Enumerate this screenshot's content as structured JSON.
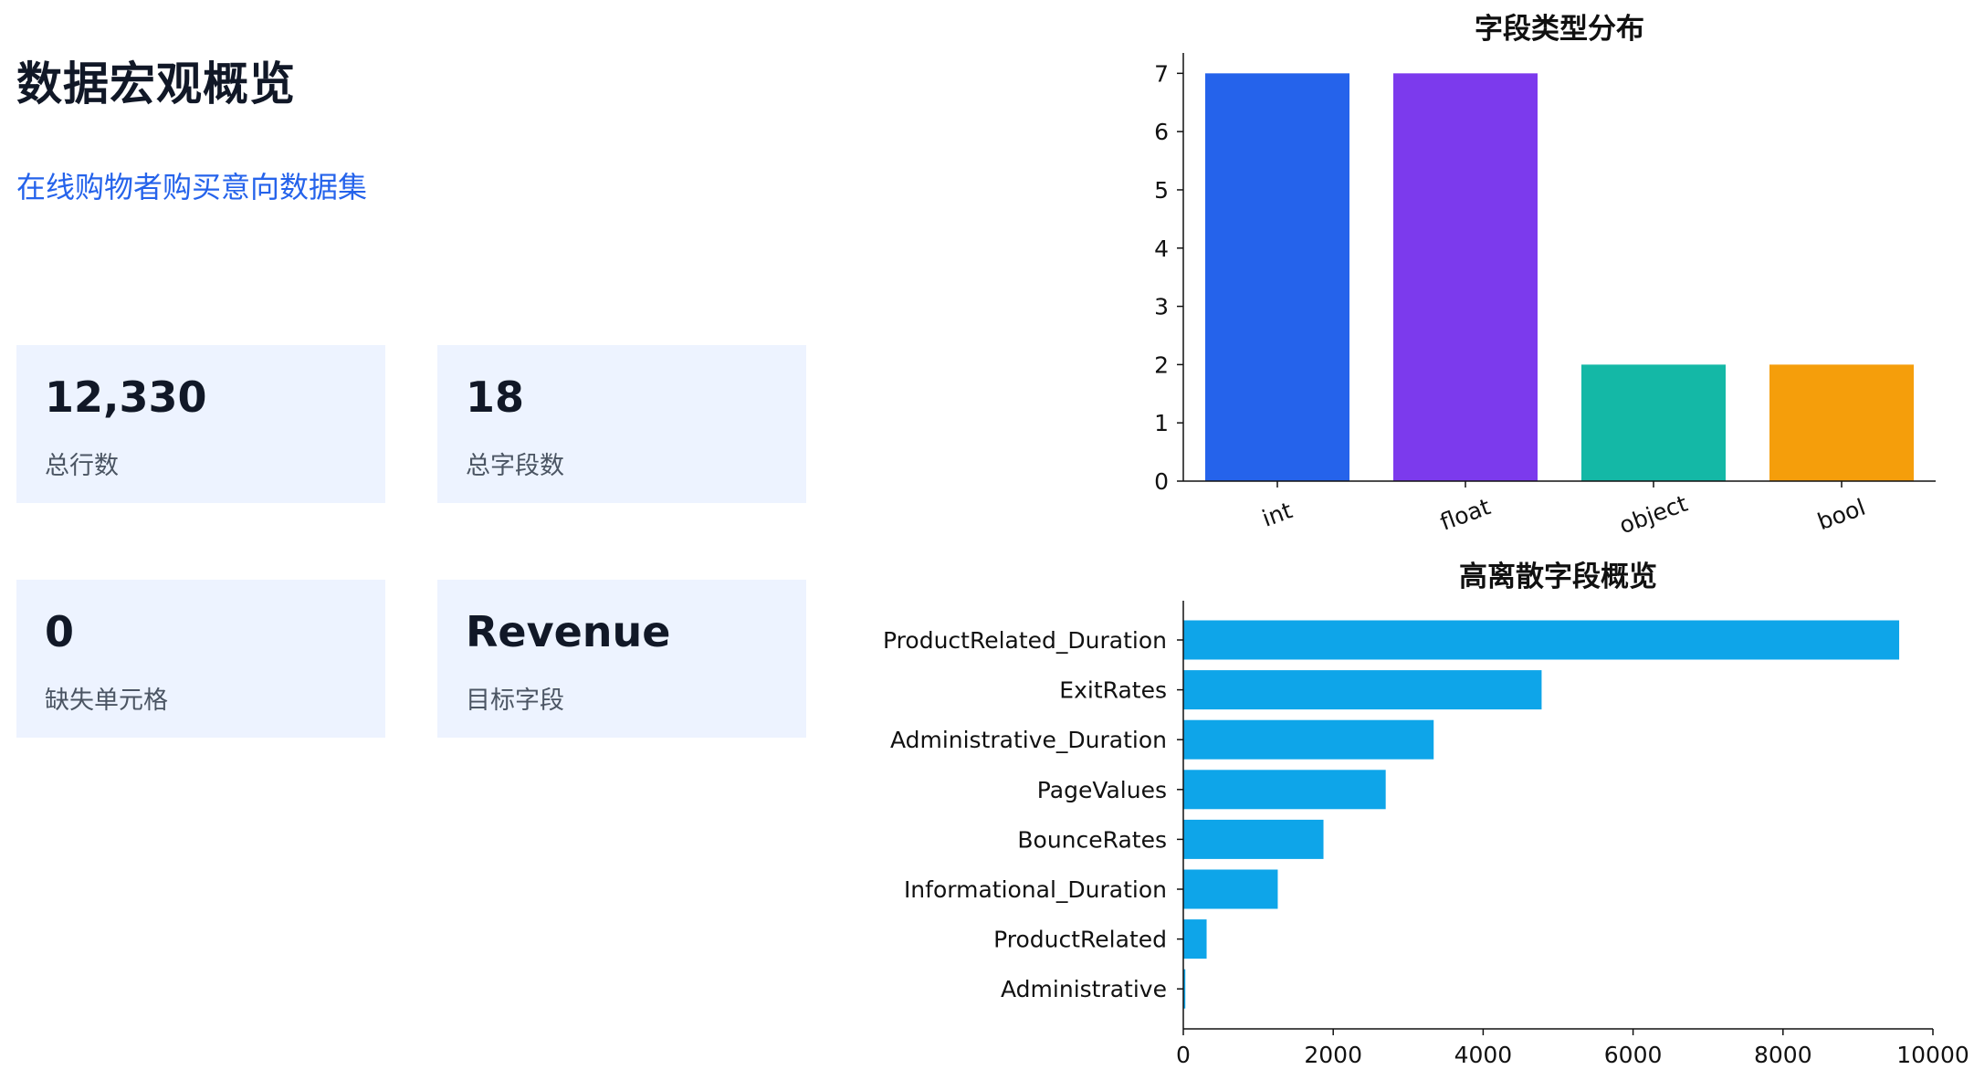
{
  "header": {
    "title": "数据宏观概览",
    "subtitle": "在线购物者购买意向数据集"
  },
  "cards": [
    {
      "value": "12,330",
      "label": "总行数"
    },
    {
      "value": "18",
      "label": "总字段数"
    },
    {
      "value": "0",
      "label": "缺失单元格"
    },
    {
      "value": "Revenue",
      "label": "目标字段"
    }
  ],
  "chart_data": [
    {
      "type": "bar",
      "title": "字段类型分布",
      "categories": [
        "int",
        "float",
        "object",
        "bool"
      ],
      "values": [
        7,
        7,
        2,
        2
      ],
      "colors": [
        "#2563eb",
        "#7c3aed",
        "#14b8a6",
        "#f59e0b"
      ],
      "yticks": [
        0,
        1,
        2,
        3,
        4,
        5,
        6,
        7
      ],
      "ylim": [
        0,
        7.35
      ],
      "grid": false,
      "legend": "none"
    },
    {
      "type": "bar",
      "orientation": "horizontal",
      "title": "高离散字段概览",
      "categories": [
        "ProductRelated_Duration",
        "ExitRates",
        "Administrative_Duration",
        "PageValues",
        "BounceRates",
        "Informational_Duration",
        "ProductRelated",
        "Administrative"
      ],
      "values": [
        9550,
        4780,
        3340,
        2700,
        1870,
        1260,
        311,
        27
      ],
      "color": "#0ea5e9",
      "xticks": [
        0,
        2000,
        4000,
        6000,
        8000,
        10000
      ],
      "xlim": [
        0,
        10000
      ],
      "grid": false,
      "legend": "none"
    }
  ]
}
